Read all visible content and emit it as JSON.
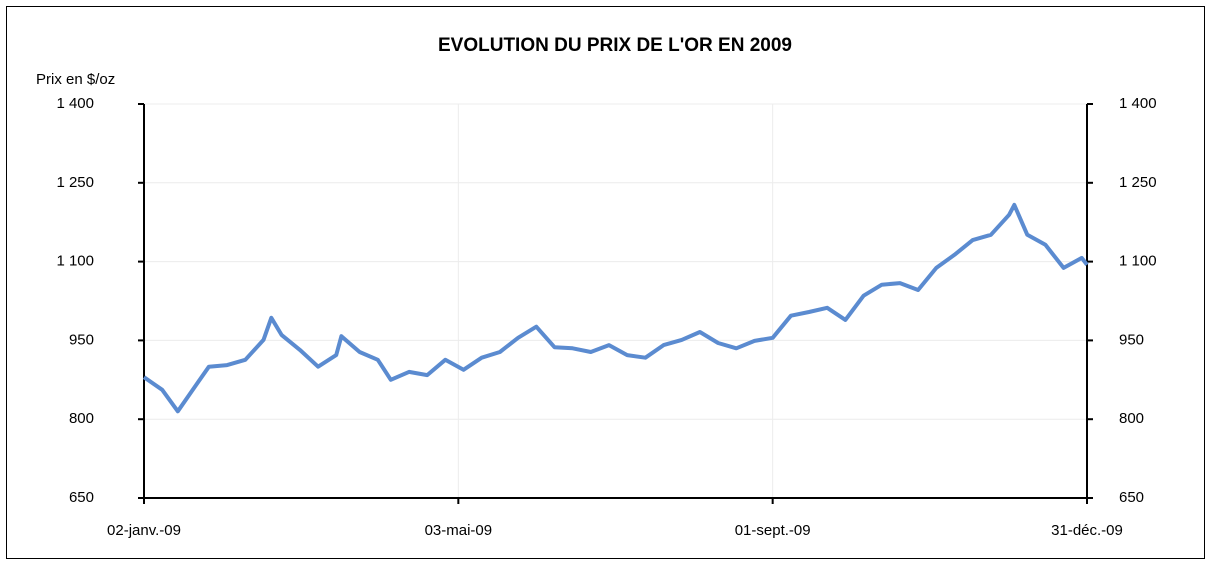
{
  "chart_data": {
    "type": "line",
    "title": "EVOLUTION DU PRIX DE L'OR EN 2009",
    "y_label": "Prix en $/oz",
    "x": [
      "2009-01-02",
      "2009-01-09",
      "2009-01-15",
      "2009-01-22",
      "2009-01-27",
      "2009-02-03",
      "2009-02-10",
      "2009-02-17",
      "2009-02-20",
      "2009-02-24",
      "2009-03-03",
      "2009-03-10",
      "2009-03-17",
      "2009-03-19",
      "2009-03-26",
      "2009-04-02",
      "2009-04-07",
      "2009-04-14",
      "2009-04-21",
      "2009-04-28",
      "2009-05-05",
      "2009-05-12",
      "2009-05-19",
      "2009-05-26",
      "2009-06-02",
      "2009-06-09",
      "2009-06-16",
      "2009-06-23",
      "2009-06-30",
      "2009-07-07",
      "2009-07-14",
      "2009-07-21",
      "2009-07-28",
      "2009-08-04",
      "2009-08-11",
      "2009-08-18",
      "2009-08-25",
      "2009-09-01",
      "2009-09-08",
      "2009-09-15",
      "2009-09-22",
      "2009-09-29",
      "2009-10-06",
      "2009-10-13",
      "2009-10-20",
      "2009-10-27",
      "2009-11-03",
      "2009-11-10",
      "2009-11-17",
      "2009-11-24",
      "2009-12-01",
      "2009-12-03",
      "2009-12-08",
      "2009-12-15",
      "2009-12-22",
      "2009-12-29",
      "2009-12-31"
    ],
    "values": [
      880,
      856,
      815,
      865,
      900,
      903,
      913,
      951,
      993,
      960,
      932,
      900,
      922,
      958,
      928,
      913,
      875,
      890,
      884,
      913,
      894,
      917,
      928,
      955,
      976,
      937,
      935,
      928,
      941,
      922,
      917,
      941,
      951,
      966,
      945,
      935,
      949,
      955,
      997,
      1004,
      1012,
      989,
      1035,
      1056,
      1059,
      1046,
      1088,
      1113,
      1141,
      1151,
      1189,
      1208,
      1151,
      1132,
      1088,
      1107,
      1094
    ],
    "color": "#5b8bd0",
    "xticks": [
      {
        "value": "2009-01-02",
        "label": "02-janv.-09"
      },
      {
        "value": "2009-05-03",
        "label": "03-mai-09"
      },
      {
        "value": "2009-09-01",
        "label": "01-sept.-09"
      },
      {
        "value": "2009-12-31",
        "label": "31-déc.-09"
      }
    ],
    "ylim": [
      650,
      1400
    ],
    "yticks": [
      650,
      800,
      950,
      {
        "value": 1100,
        "label": "1 100"
      },
      {
        "value": 1250,
        "label": "1 250"
      },
      {
        "value": 1400,
        "label": "1 400"
      }
    ],
    "grid": true
  }
}
